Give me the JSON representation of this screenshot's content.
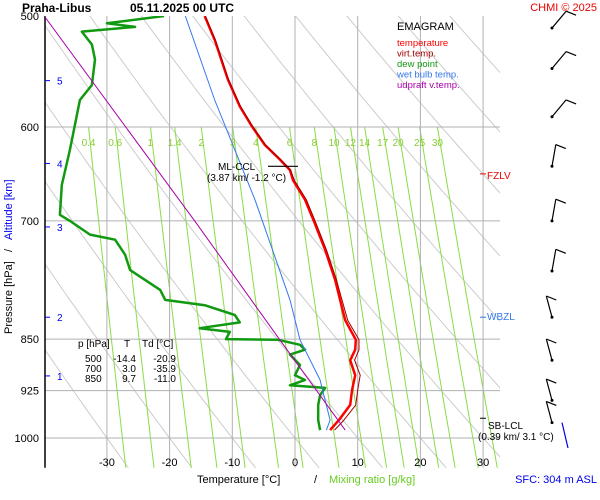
{
  "header": {
    "station": "Praha-Libus",
    "datetime": "05.11.2025 00 UTC",
    "credit": "CHMI © 2025"
  },
  "colors": {
    "temperature": "#ff0000",
    "virt_temp": "#a00000",
    "dew_point": "#119911",
    "wet_bulb": "#3377ee",
    "updraft": "#aa00aa",
    "mixing": "#88dd44",
    "adiabat": "#cccccc",
    "grid": "#b0b0b0",
    "altitude": "#0000ee"
  },
  "chart_data": {
    "type": "line",
    "title": "EMAGRAM",
    "xlabel": "Temperature [°C]",
    "xlabel_sep": "/",
    "xlabel2": "Mixing ratio [g/kg]",
    "ylabel": "Pressure [hPa]",
    "ylabel_sep": "/",
    "ylabel2": "Altitude [km]",
    "xlim": [
      -40,
      32
    ],
    "ylim": [
      1050,
      500
    ],
    "x_ticks": [
      -30,
      -20,
      -10,
      0,
      10,
      20,
      30
    ],
    "y_ticks": [
      500,
      600,
      700,
      850,
      925,
      1000
    ],
    "altitude_ticks": [
      {
        "km": "1",
        "p": 903
      },
      {
        "km": "2",
        "p": 820
      },
      {
        "km": "3",
        "p": 707
      },
      {
        "km": "4",
        "p": 637
      },
      {
        "km": "5",
        "p": 556
      }
    ],
    "mixing_ratio_labels": [
      "0.4",
      "0.6",
      "1",
      "1.4",
      "2",
      "3",
      "4",
      "6",
      "8",
      "10",
      "12",
      "14",
      "17",
      "20",
      "25",
      "30"
    ],
    "legend": [
      "temperature",
      "virt.temp.",
      "dew point",
      "wet bulb temp.",
      "udpraft v.temp."
    ],
    "series": [
      {
        "name": "temperature",
        "points": [
          [
            500,
            -14.4
          ],
          [
            520,
            -12.8
          ],
          [
            555,
            -10.7
          ],
          [
            580,
            -8.8
          ],
          [
            599,
            -6.9
          ],
          [
            618,
            -4.8
          ],
          [
            633,
            -2.4
          ],
          [
            644,
            -0.8
          ],
          [
            655,
            -0.3
          ],
          [
            676,
            1.6
          ],
          [
            700,
            3.0
          ],
          [
            734,
            4.8
          ],
          [
            771,
            6.4
          ],
          [
            797,
            7.2
          ],
          [
            824,
            8.0
          ],
          [
            851,
            9.7
          ],
          [
            865,
            9.6
          ],
          [
            880,
            8.8
          ],
          [
            902,
            9.6
          ],
          [
            924,
            9.1
          ],
          [
            947,
            8.8
          ],
          [
            971,
            7.0
          ],
          [
            987,
            5.6
          ]
        ]
      },
      {
        "name": "virt.temp.",
        "points": [
          [
            500,
            -14.3
          ],
          [
            520,
            -12.7
          ],
          [
            555,
            -10.6
          ],
          [
            580,
            -8.7
          ],
          [
            599,
            -6.8
          ],
          [
            618,
            -4.7
          ],
          [
            633,
            -2.3
          ],
          [
            644,
            -0.7
          ],
          [
            655,
            -0.1
          ],
          [
            676,
            1.8
          ],
          [
            700,
            3.2
          ],
          [
            734,
            5.0
          ],
          [
            771,
            6.6
          ],
          [
            797,
            7.5
          ],
          [
            824,
            8.4
          ],
          [
            851,
            10.2
          ],
          [
            865,
            10.2
          ],
          [
            880,
            9.5
          ],
          [
            902,
            10.4
          ],
          [
            924,
            10.0
          ],
          [
            947,
            9.7
          ],
          [
            971,
            7.8
          ],
          [
            987,
            6.3
          ]
        ]
      },
      {
        "name": "dew point",
        "points": [
          [
            500,
            -20.9
          ],
          [
            506,
            -30
          ],
          [
            509,
            -25.5
          ],
          [
            513,
            -34
          ],
          [
            524,
            -32.4
          ],
          [
            537,
            -31.9
          ],
          [
            560,
            -32.4
          ],
          [
            574,
            -34.3
          ],
          [
            623,
            -35.9
          ],
          [
            660,
            -37.2
          ],
          [
            693,
            -37.5
          ],
          [
            700,
            -35.9
          ],
          [
            716,
            -32.7
          ],
          [
            722,
            -28.7
          ],
          [
            740,
            -27.1
          ],
          [
            759,
            -26.3
          ],
          [
            784,
            -21.5
          ],
          [
            797,
            -20.7
          ],
          [
            804,
            -14.4
          ],
          [
            817,
            -9.6
          ],
          [
            827,
            -8.8
          ],
          [
            835,
            -15.2
          ],
          [
            840,
            -10.4
          ],
          [
            850,
            -11.0
          ],
          [
            851,
            -2.7
          ],
          [
            858,
            0.8
          ],
          [
            865,
            1.6
          ],
          [
            872,
            -0.8
          ],
          [
            887,
            0.8
          ],
          [
            902,
            0
          ],
          [
            909,
            1.6
          ],
          [
            917,
            -0.8
          ],
          [
            921,
            4.8
          ],
          [
            932,
            4.0
          ],
          [
            947,
            3.7
          ],
          [
            971,
            3.7
          ],
          [
            987,
            4.0
          ]
        ]
      },
      {
        "name": "wet bulb temp.",
        "points": [
          [
            500,
            -17.5
          ],
          [
            574,
            -12.8
          ],
          [
            676,
            -6.4
          ],
          [
            797,
            -0.8
          ],
          [
            851,
            0.8
          ],
          [
            909,
            4.0
          ],
          [
            971,
            5.6
          ],
          [
            987,
            5.0
          ]
        ]
      },
      {
        "name": "udpraft v.temp.",
        "points": [
          [
            500,
            -40
          ],
          [
            700,
            -16
          ],
          [
            850,
            -2.5
          ],
          [
            987,
            8
          ]
        ]
      }
    ],
    "annotations": [
      {
        "label": "ML-CCL",
        "value": "(3.87 km/ -1.2 °C)",
        "p": 640
      },
      {
        "label": "SB-LCL",
        "value": "(0.39 km/ 3.1 °C)",
        "p": 975
      },
      {
        "label": "FZLV",
        "p": 648
      },
      {
        "label": "WBZL",
        "p": 820
      }
    ],
    "table": {
      "headers": [
        "p [hPa]",
        "T",
        "Td [°C]"
      ],
      "rows": [
        [
          "500",
          "-14.4",
          "-20.9"
        ],
        [
          "700",
          "3.0",
          "-35.9"
        ],
        [
          "850",
          "9.7",
          "-11.0"
        ]
      ]
    },
    "wind_barbs_p": [
      510,
      545,
      590,
      640,
      700,
      760,
      820,
      880,
      940,
      975
    ],
    "surface": "SFC: 304 m ASL"
  }
}
